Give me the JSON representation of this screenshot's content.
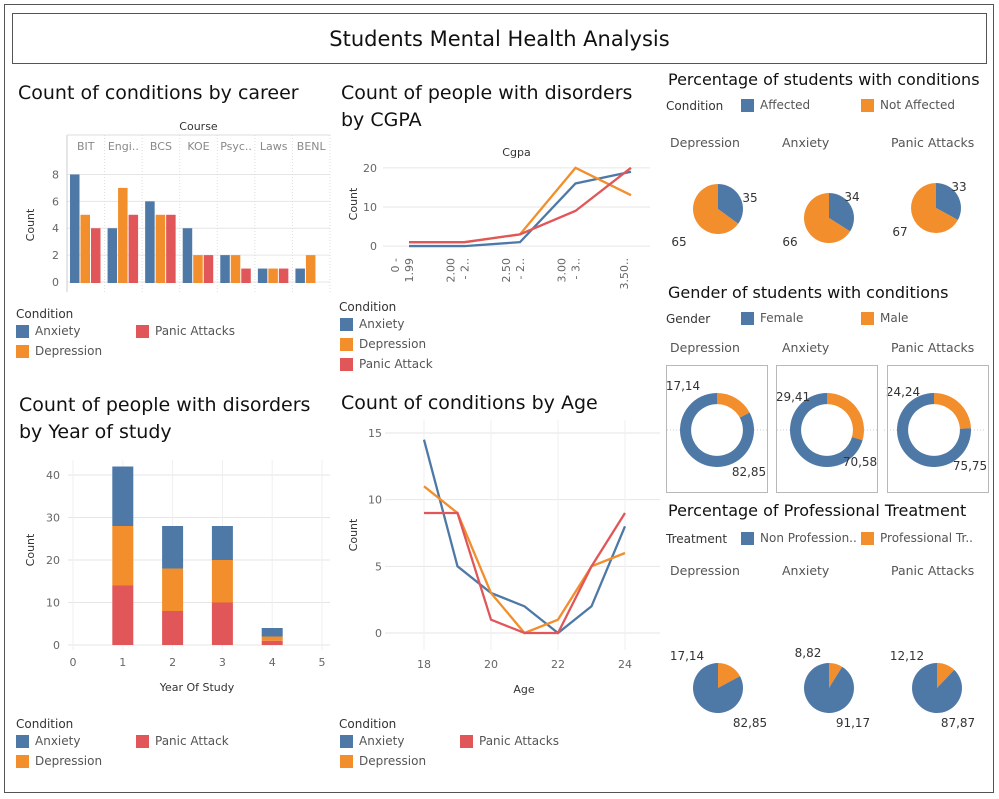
{
  "page_title": "Students Mental Health Analysis",
  "colors": {
    "blue": "#4e79a7",
    "orange": "#f28e2b",
    "red": "#e15759",
    "grid": "#e6e6e6"
  },
  "legends": {
    "career": {
      "title": "Condition",
      "items": [
        "Anxiety",
        "Depression",
        "Panic Attacks"
      ]
    },
    "cgpa": {
      "title": "Condition",
      "items": [
        "Anxiety",
        "Depression",
        "Panic Attack"
      ]
    },
    "year": {
      "title": "Condition",
      "items": [
        "Anxiety",
        "Depression",
        "Panic Attack"
      ]
    },
    "age": {
      "title": "Condition",
      "items": [
        "Anxiety",
        "Depression",
        "Panic Attacks"
      ]
    },
    "pct": {
      "title": "Condition",
      "items": [
        "Affected",
        "Not Affected"
      ]
    },
    "gender": {
      "title": "Gender",
      "items": [
        "Female",
        "Male"
      ]
    },
    "treatment": {
      "title": "Treatment",
      "items": [
        "Non Profession..",
        "Professional Tr.."
      ]
    }
  },
  "chart_data": [
    {
      "id": "career",
      "type": "bar",
      "title": "Count of conditions by career",
      "xlabel": "Course",
      "ylabel": "Count",
      "categories": [
        "BIT",
        "Engi..",
        "BCS",
        "KOE",
        "Psyc..",
        "Laws",
        "BENL"
      ],
      "series": [
        {
          "name": "Anxiety",
          "values": [
            8,
            4,
            6,
            4,
            2,
            1,
            1
          ]
        },
        {
          "name": "Depression",
          "values": [
            5,
            7,
            5,
            2,
            2,
            1,
            2
          ]
        },
        {
          "name": "Panic Attacks",
          "values": [
            4,
            5,
            5,
            2,
            1,
            1,
            0
          ]
        }
      ],
      "yticks": [
        0,
        2,
        4,
        6,
        8
      ],
      "ylim": [
        0,
        9
      ]
    },
    {
      "id": "cgpa",
      "type": "line",
      "title": "Count of people with disorders by CGPA",
      "xlabel": "Cgpa",
      "ylabel": "Count",
      "categories": [
        "0 - 1.99",
        "2.00 - 2..",
        "2.50 - 2..",
        "3.00 - 3..",
        "3.50.."
      ],
      "xtick_lines": [
        [
          "0 -",
          "1.99"
        ],
        [
          "2.00",
          "- 2.."
        ],
        [
          "2.50",
          "- 2.."
        ],
        [
          "3.00",
          "- 3.."
        ],
        [
          "3.50.."
        ]
      ],
      "series": [
        {
          "name": "Anxiety",
          "values": [
            0,
            0,
            1,
            16,
            19
          ]
        },
        {
          "name": "Depression",
          "values": [
            1,
            1,
            3,
            20,
            13
          ]
        },
        {
          "name": "Panic Attack",
          "values": [
            1,
            1,
            3,
            9,
            20
          ]
        }
      ],
      "yticks": [
        0,
        10,
        20
      ],
      "ylim": [
        -1,
        22
      ]
    },
    {
      "id": "year",
      "type": "bar",
      "stacked": true,
      "title": "Count of people with disorders by Year of study",
      "xlabel": "Year Of Study",
      "ylabel": "Count",
      "x": [
        1,
        2,
        3,
        4
      ],
      "series": [
        {
          "name": "Panic Attack",
          "values": [
            14,
            8,
            10,
            1
          ]
        },
        {
          "name": "Depression",
          "values": [
            14,
            10,
            10,
            1
          ]
        },
        {
          "name": "Anxiety",
          "values": [
            14,
            10,
            8,
            2
          ]
        }
      ],
      "xticks": [
        0,
        1,
        2,
        3,
        4,
        5
      ],
      "yticks": [
        0,
        10,
        20,
        30,
        40
      ],
      "xlim": [
        0,
        5
      ],
      "ylim": [
        0,
        45
      ]
    },
    {
      "id": "age",
      "type": "line",
      "title": "Count of conditions by Age",
      "xlabel": "Age",
      "ylabel": "Count",
      "x": [
        18,
        19,
        20,
        21,
        22,
        23,
        24
      ],
      "series": [
        {
          "name": "Anxiety",
          "values": [
            14.5,
            5,
            3,
            2,
            0,
            2,
            8
          ]
        },
        {
          "name": "Depression",
          "values": [
            11,
            9,
            3,
            0,
            1,
            5,
            6
          ]
        },
        {
          "name": "Panic Attacks",
          "values": [
            9,
            9,
            1,
            0,
            0,
            5,
            9
          ]
        }
      ],
      "xticks": [
        18,
        20,
        22,
        24
      ],
      "yticks": [
        0,
        5,
        10,
        15
      ],
      "xlim": [
        17,
        25
      ],
      "ylim": [
        -1,
        16
      ]
    },
    {
      "id": "pct",
      "type": "pie",
      "title": "Percentage of students with conditions",
      "charts": [
        {
          "label": "Depression",
          "slices": [
            {
              "name": "Affected",
              "value": 35
            },
            {
              "name": "Not Affected",
              "value": 65
            }
          ],
          "labels": [
            "35",
            "65"
          ]
        },
        {
          "label": "Anxiety",
          "slices": [
            {
              "name": "Affected",
              "value": 34
            },
            {
              "name": "Not Affected",
              "value": 66
            }
          ],
          "labels": [
            "34",
            "66"
          ]
        },
        {
          "label": "Panic Attacks",
          "slices": [
            {
              "name": "Affected",
              "value": 33
            },
            {
              "name": "Not Affected",
              "value": 67
            }
          ],
          "labels": [
            "33",
            "67"
          ]
        }
      ]
    },
    {
      "id": "gender",
      "type": "pie",
      "donut": true,
      "title": "Gender of students with conditions",
      "charts": [
        {
          "label": "Depression",
          "slices": [
            {
              "name": "Male",
              "value": 17.14
            },
            {
              "name": "Female",
              "value": 82.85
            }
          ],
          "labels": [
            "17,14",
            "82,85"
          ]
        },
        {
          "label": "Anxiety",
          "slices": [
            {
              "name": "Male",
              "value": 29.41
            },
            {
              "name": "Female",
              "value": 70.58
            }
          ],
          "labels": [
            "29,41",
            "70,58"
          ]
        },
        {
          "label": "Panic Attacks",
          "slices": [
            {
              "name": "Male",
              "value": 24.24
            },
            {
              "name": "Female",
              "value": 75.75
            }
          ],
          "labels": [
            "24,24",
            "75,75"
          ]
        }
      ]
    },
    {
      "id": "treatment",
      "type": "pie",
      "title": "Percentage of  Professional Treatment",
      "charts": [
        {
          "label": "Depression",
          "slices": [
            {
              "name": "Professional Tr..",
              "value": 17.14
            },
            {
              "name": "Non Profession..",
              "value": 82.85
            }
          ],
          "labels": [
            "17,14",
            "82,85"
          ]
        },
        {
          "label": "Anxiety",
          "slices": [
            {
              "name": "Professional Tr..",
              "value": 8.82
            },
            {
              "name": "Non Profession..",
              "value": 91.17
            }
          ],
          "labels": [
            "8,82",
            "91,17"
          ]
        },
        {
          "label": "Panic Attacks",
          "slices": [
            {
              "name": "Professional Tr..",
              "value": 12.12
            },
            {
              "name": "Non Profession..",
              "value": 87.87
            }
          ],
          "labels": [
            "12,12",
            "87,87"
          ]
        }
      ]
    }
  ]
}
